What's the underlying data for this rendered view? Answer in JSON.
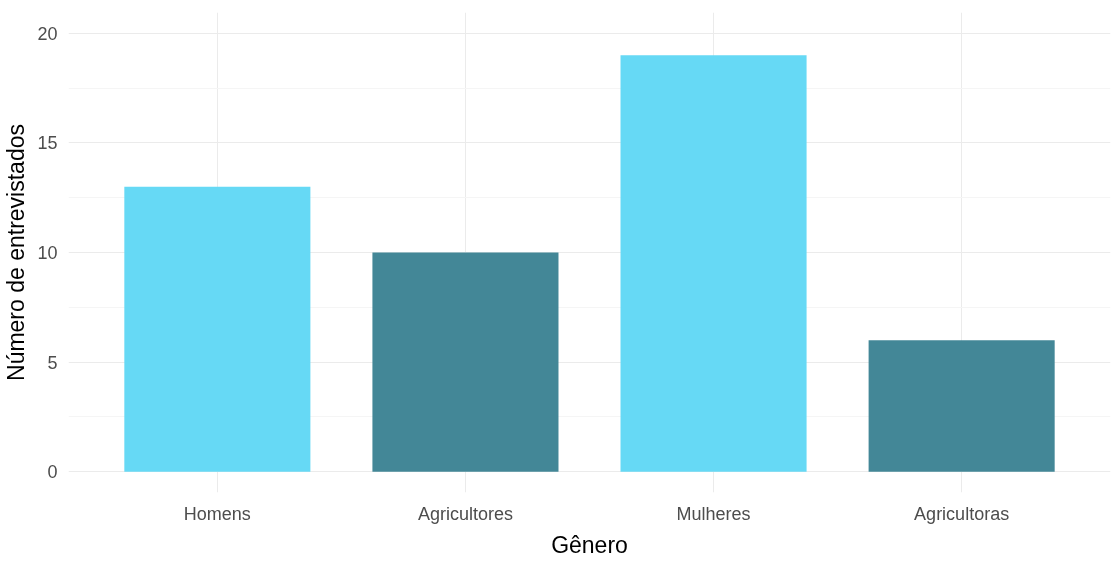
{
  "chart_data": {
    "type": "bar",
    "xlabel": "Gênero",
    "ylabel": "Número de entrevistados",
    "categories": [
      "Homens",
      "Agricultores",
      "Mulheres",
      "Agricultoras"
    ],
    "values": [
      13,
      10,
      19,
      6
    ],
    "colors": [
      "#66d9f5",
      "#438797",
      "#66d9f5",
      "#438797"
    ],
    "ylim": [
      -0.95,
      20.95
    ],
    "yticks": [
      0,
      5,
      10,
      15,
      20
    ],
    "grid": true
  }
}
